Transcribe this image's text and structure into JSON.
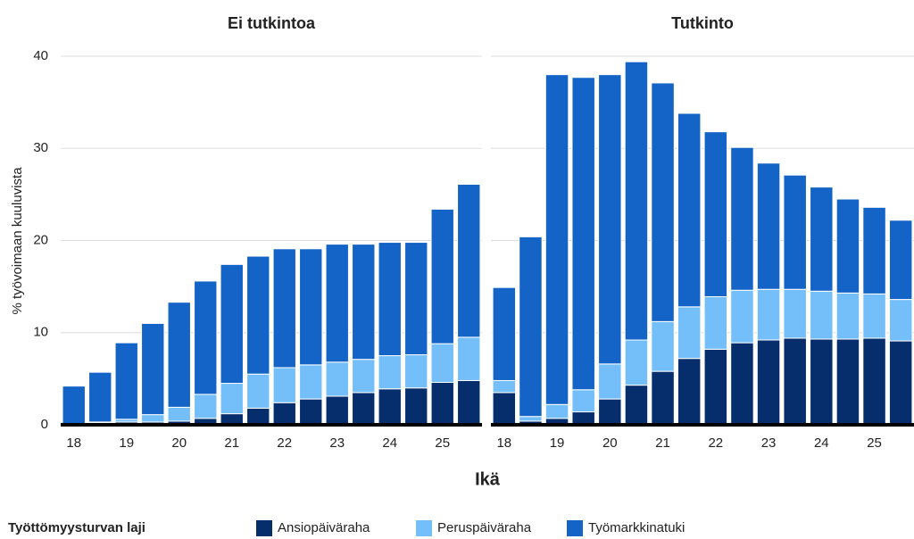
{
  "shared": {
    "ylabel": "% työvoimaan kuuluvista",
    "xlabel": "Ikä",
    "legend_title": "Työttömyysturvan laji"
  },
  "chart_data": [
    {
      "type": "bar",
      "stacked": true,
      "title": "Ei tutkintoa",
      "categories": [
        "18",
        null,
        "19",
        null,
        "20",
        null,
        "21",
        null,
        "22",
        null,
        "23",
        null,
        "24",
        null,
        "25",
        null
      ],
      "ylim": [
        0,
        40
      ],
      "yticks": [
        0,
        10,
        20,
        30,
        40
      ],
      "grid": true,
      "series": [
        {
          "name": "Ansiopäiväraha",
          "color": "#062d6c",
          "values": [
            0.1,
            0.2,
            0.3,
            0.3,
            0.4,
            0.7,
            1.2,
            1.8,
            2.4,
            2.8,
            3.1,
            3.5,
            3.9,
            4.0,
            4.6,
            4.8
          ]
        },
        {
          "name": "Peruspäiväraha",
          "color": "#74bff9",
          "values": [
            0.0,
            0.1,
            0.3,
            0.8,
            1.5,
            2.6,
            3.3,
            3.7,
            3.8,
            3.7,
            3.7,
            3.6,
            3.6,
            3.6,
            4.2,
            4.7
          ]
        },
        {
          "name": "Työmarkkinatuki",
          "color": "#1463c6",
          "values": [
            4.1,
            5.4,
            8.3,
            9.9,
            11.4,
            12.3,
            12.9,
            12.8,
            12.9,
            12.6,
            12.8,
            12.5,
            12.3,
            12.2,
            14.6,
            16.6
          ]
        }
      ]
    },
    {
      "type": "bar",
      "stacked": true,
      "title": "Tutkinto",
      "categories": [
        "18",
        null,
        "19",
        null,
        "20",
        null,
        "21",
        null,
        "22",
        null,
        "23",
        null,
        "24",
        null,
        "25",
        null
      ],
      "series": [
        {
          "values": [
            3.5,
            0.4,
            0.7,
            1.4,
            2.8,
            4.3,
            5.8,
            7.2,
            8.2,
            8.9,
            9.2,
            9.4,
            9.3,
            9.3,
            9.4,
            9.1
          ]
        },
        {
          "values": [
            1.3,
            0.5,
            1.5,
            2.4,
            3.8,
            4.9,
            5.4,
            5.6,
            5.7,
            5.7,
            5.5,
            5.3,
            5.2,
            5.0,
            4.8,
            4.5
          ]
        },
        {
          "values": [
            10.1,
            19.5,
            35.8,
            33.9,
            31.4,
            30.2,
            25.9,
            21.0,
            17.9,
            15.5,
            13.7,
            12.4,
            11.3,
            10.2,
            9.4,
            8.6
          ]
        }
      ]
    }
  ]
}
